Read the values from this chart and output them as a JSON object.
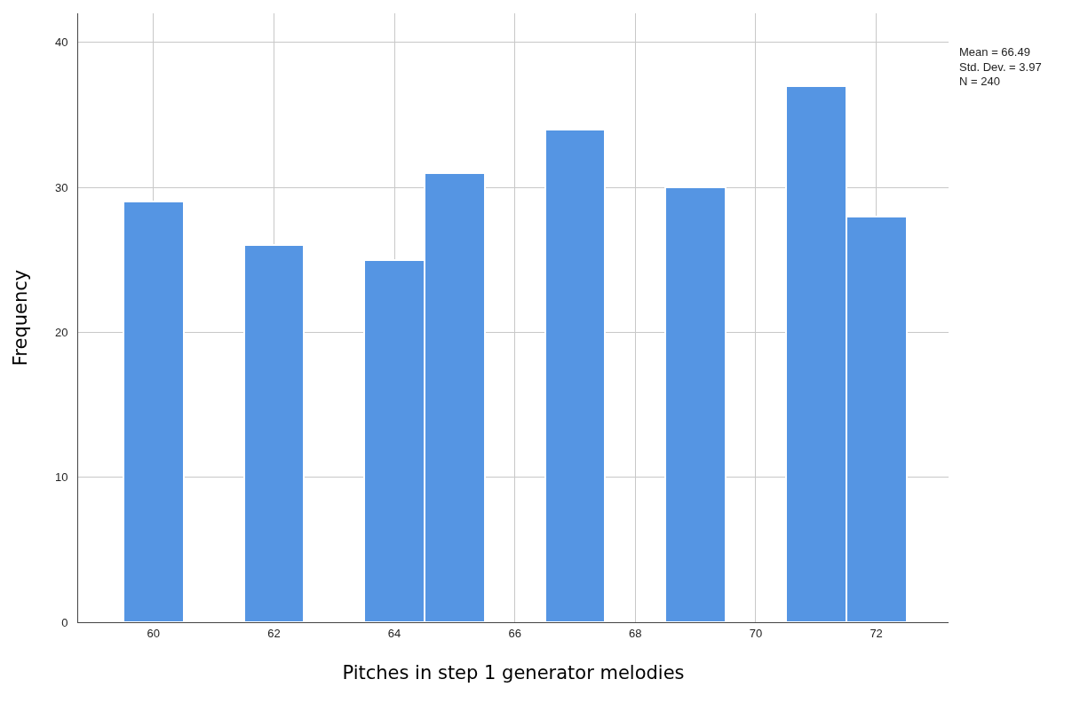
{
  "chart_data": {
    "type": "histogram",
    "xlabel": "Pitches in step 1 generator melodies",
    "ylabel": "Frequency",
    "bins": [
      59.5,
      60.5,
      61.5,
      62.5,
      63.5,
      64.5,
      65.5,
      66.5,
      67.5,
      68.5,
      69.5,
      70.5,
      71.5,
      72.5
    ],
    "values": [
      29,
      0,
      26,
      0,
      25,
      31,
      0,
      34,
      0,
      30,
      0,
      37,
      28
    ],
    "color": "#5595e3",
    "xlim": [
      58.75,
      73.2
    ],
    "xticks": [
      60,
      62,
      64,
      66,
      68,
      70,
      72
    ],
    "ylim": [
      0,
      42
    ],
    "yticks": [
      0,
      10,
      20,
      30,
      40
    ],
    "grid": true,
    "annotations": [
      "Mean = 66.49",
      "Std. Dev. = 3.97",
      "N = 240"
    ]
  }
}
